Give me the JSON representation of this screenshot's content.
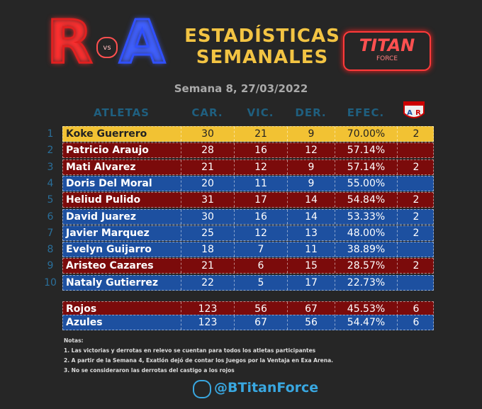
{
  "header": {
    "logo_left": {
      "r": "R",
      "vs": "vs",
      "a": "A"
    },
    "title_lines": [
      "ESTADÍSTICAS",
      "SEMANALES"
    ],
    "logo_right": {
      "name": "TITAN",
      "sub": "FORCE"
    },
    "subtitle": "Semana 8, 27/03/2022"
  },
  "table": {
    "columns": [
      "ATLETAS",
      "CAR.",
      "VIC.",
      "DER.",
      "EFEC."
    ],
    "rows": [
      {
        "rank": 1,
        "name": "Koke Guerrero",
        "car": 30,
        "vic": 21,
        "der": 9,
        "efec": "70.00%",
        "extra": 2,
        "color": "#f2c233"
      },
      {
        "rank": 2,
        "name": "Patricio Araujo",
        "car": 28,
        "vic": 16,
        "der": 12,
        "efec": "57.14%",
        "extra": null,
        "color": "#7b0b0b"
      },
      {
        "rank": 3,
        "name": "Mati Alvarez",
        "car": 21,
        "vic": 12,
        "der": 9,
        "efec": "57.14%",
        "extra": 2,
        "color": "#7b0b0b"
      },
      {
        "rank": 4,
        "name": "Doris Del Moral",
        "car": 20,
        "vic": 11,
        "der": 9,
        "efec": "55.00%",
        "extra": null,
        "color": "#1d50a0"
      },
      {
        "rank": 5,
        "name": "Heliud Pulido",
        "car": 31,
        "vic": 17,
        "der": 14,
        "efec": "54.84%",
        "extra": 2,
        "color": "#7b0b0b"
      },
      {
        "rank": 6,
        "name": "David Juarez",
        "car": 30,
        "vic": 16,
        "der": 14,
        "efec": "53.33%",
        "extra": 2,
        "color": "#1d50a0"
      },
      {
        "rank": 7,
        "name": "Javier Marquez",
        "car": 25,
        "vic": 12,
        "der": 13,
        "efec": "48.00%",
        "extra": 2,
        "color": "#1d50a0"
      },
      {
        "rank": 8,
        "name": "Evelyn Guijarro",
        "car": 18,
        "vic": 7,
        "der": 11,
        "efec": "38.89%",
        "extra": null,
        "color": "#1d50a0"
      },
      {
        "rank": 9,
        "name": "Aristeo Cazares",
        "car": 21,
        "vic": 6,
        "der": 15,
        "efec": "28.57%",
        "extra": 2,
        "color": "#7b0b0b"
      },
      {
        "rank": 10,
        "name": "Nataly Gutierrez",
        "car": 22,
        "vic": 5,
        "der": 17,
        "efec": "22.73%",
        "extra": null,
        "color": "#1d50a0"
      }
    ],
    "totals": [
      {
        "name": "Rojos",
        "car": 123,
        "vic": 56,
        "der": 67,
        "efec": "45.53%",
        "extra": 6,
        "color": "#7b0b0b"
      },
      {
        "name": "Azules",
        "car": 123,
        "vic": 67,
        "der": 56,
        "efec": "54.47%",
        "extra": 6,
        "color": "#1d50a0"
      }
    ]
  },
  "notes": {
    "title": "Notas:",
    "items": [
      "1. Las victorias y derrotas en relevo se cuentan para todos los atletas participantes",
      "2. A partir de la Semana 4, Exatlón dejó de contar los Juegos por la Ventaja en Exa Arena.",
      "3. No se consideraron las derrotas del castigo a los rojos"
    ]
  },
  "footer": {
    "handle": "@BTitanForce"
  }
}
